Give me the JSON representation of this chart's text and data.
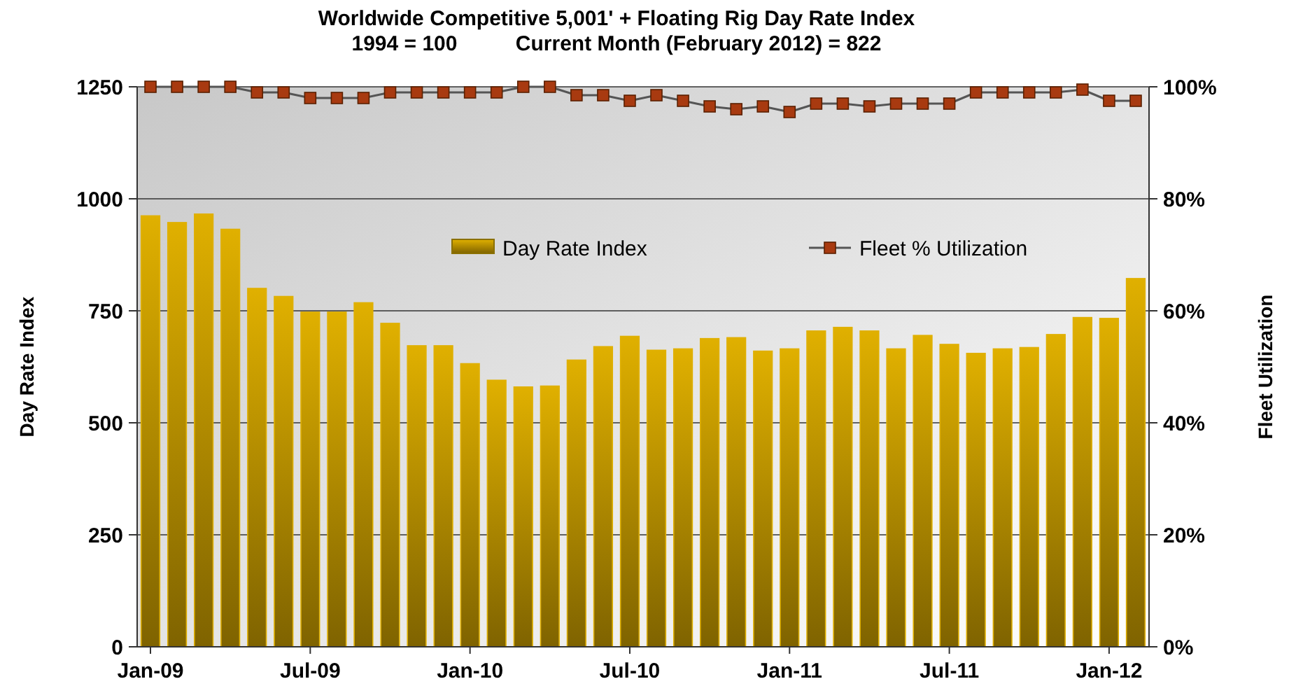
{
  "chart_data": {
    "type": "bar",
    "title": "Worldwide Competitive 5,001' + Floating Rig Day Rate Index",
    "subtitle": "1994 = 100          Current Month (February 2012) = 822",
    "categories": [
      "Jan-09",
      null,
      null,
      null,
      null,
      null,
      "Jul-09",
      null,
      null,
      null,
      null,
      null,
      "Jan-10",
      null,
      null,
      null,
      null,
      null,
      "Jul-10",
      null,
      null,
      null,
      null,
      null,
      "Jan-11",
      null,
      null,
      null,
      null,
      null,
      "Jul-11",
      null,
      null,
      null,
      null,
      null,
      "Jan-12",
      null
    ],
    "series": [
      {
        "name": "Day Rate Index",
        "color": "#e0b000",
        "values": [
          962,
          947,
          966,
          932,
          800,
          782,
          747,
          747,
          768,
          722,
          672,
          672,
          632,
          595,
          580,
          582,
          640,
          670,
          693,
          662,
          665,
          688,
          690,
          660,
          665,
          705,
          713,
          705,
          665,
          695,
          675,
          655,
          665,
          668,
          697,
          735,
          733,
          822
        ]
      },
      {
        "name": "Fleet % Utilization",
        "type": "line",
        "axis": "y2",
        "color": "#a83a10",
        "values": [
          100,
          100,
          100,
          100,
          99,
          99,
          98,
          98,
          98,
          99,
          99,
          99,
          99,
          99,
          100,
          100,
          98.5,
          98.5,
          97.5,
          98.5,
          97.5,
          96.5,
          96,
          96.5,
          95.5,
          97,
          97,
          96.5,
          97,
          97,
          97,
          99,
          99,
          99,
          99,
          99.5,
          97.5,
          97.5
        ]
      }
    ],
    "ylabel": "Day Rate Index",
    "y2label": "Fleet Utilization",
    "ylim": [
      0,
      1250
    ],
    "yticks": [
      0,
      250,
      500,
      750,
      1000,
      1250
    ],
    "y2lim": [
      0,
      100
    ],
    "y2ticks": [
      {
        "value": 0,
        "label": "0%"
      },
      {
        "value": 20,
        "label": "20%"
      },
      {
        "value": 40,
        "label": "40%"
      },
      {
        "value": 60,
        "label": "60%"
      },
      {
        "value": 80,
        "label": "80%"
      },
      {
        "value": 100,
        "label": "100%"
      }
    ],
    "grid": "y",
    "legend": "top",
    "marker": "square",
    "line_style": "solid"
  }
}
